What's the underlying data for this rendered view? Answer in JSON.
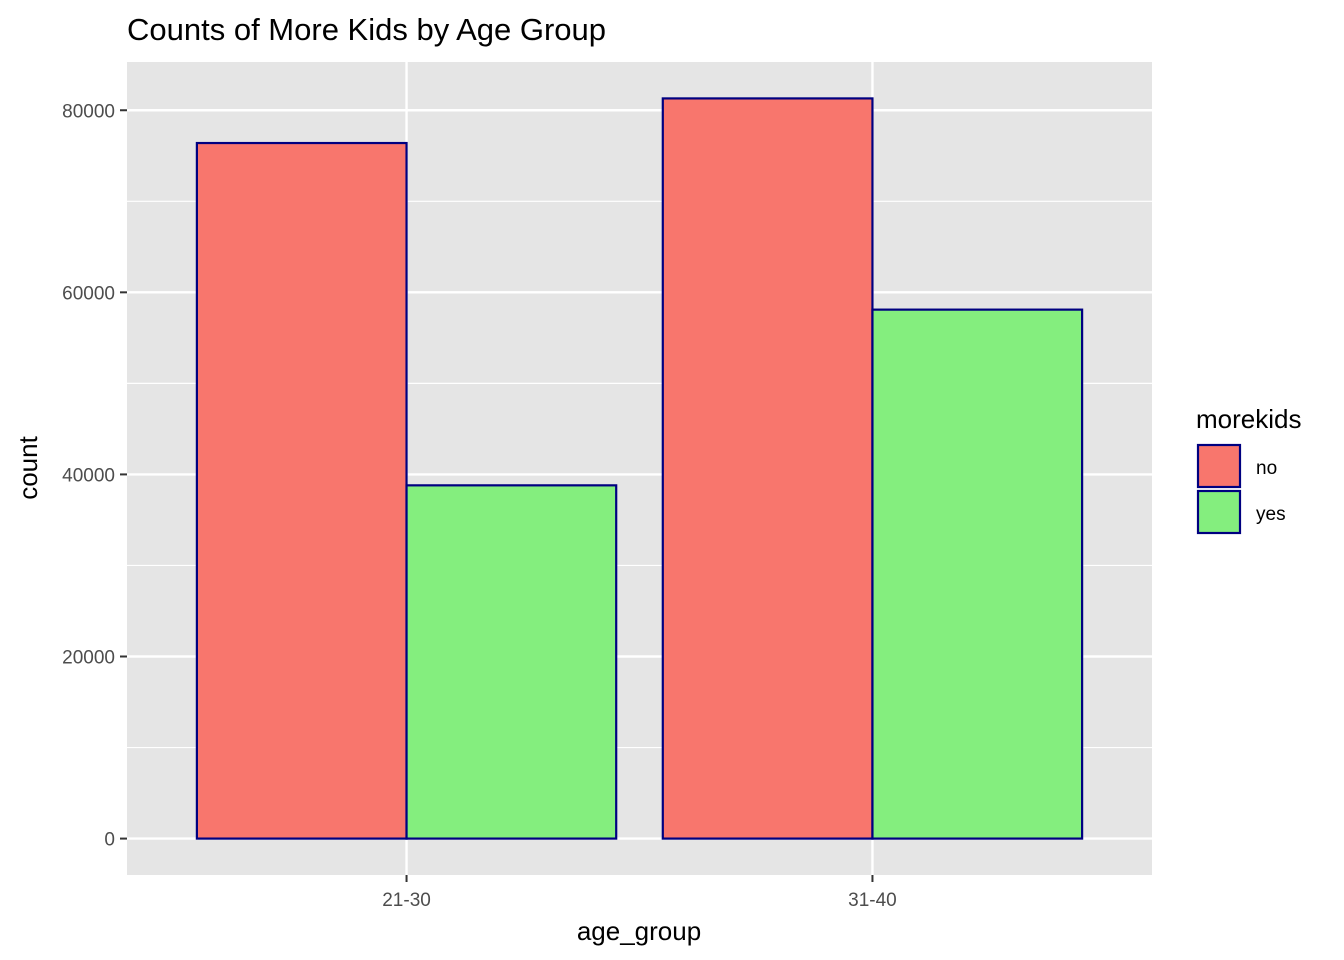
{
  "chart_data": {
    "type": "bar",
    "title": "Counts of More Kids by Age Group",
    "xlabel": "age_group",
    "ylabel": "count",
    "categories": [
      "21-30",
      "31-40"
    ],
    "series": [
      {
        "name": "no",
        "values": [
          76400,
          81300
        ],
        "color": "#F8766D"
      },
      {
        "name": "yes",
        "values": [
          38800,
          58100
        ],
        "color": "#84EE7E"
      }
    ],
    "ylim": [
      -4000,
      85300
    ],
    "yticks": [
      0,
      20000,
      40000,
      60000,
      80000
    ],
    "ytick_labels": [
      "0",
      "20000",
      "40000",
      "60000",
      "80000"
    ],
    "bar_outline_color": "#000080",
    "panel_background": "#E5E5E5",
    "grid": true,
    "legend": {
      "title": "morekids",
      "position": "right"
    }
  }
}
